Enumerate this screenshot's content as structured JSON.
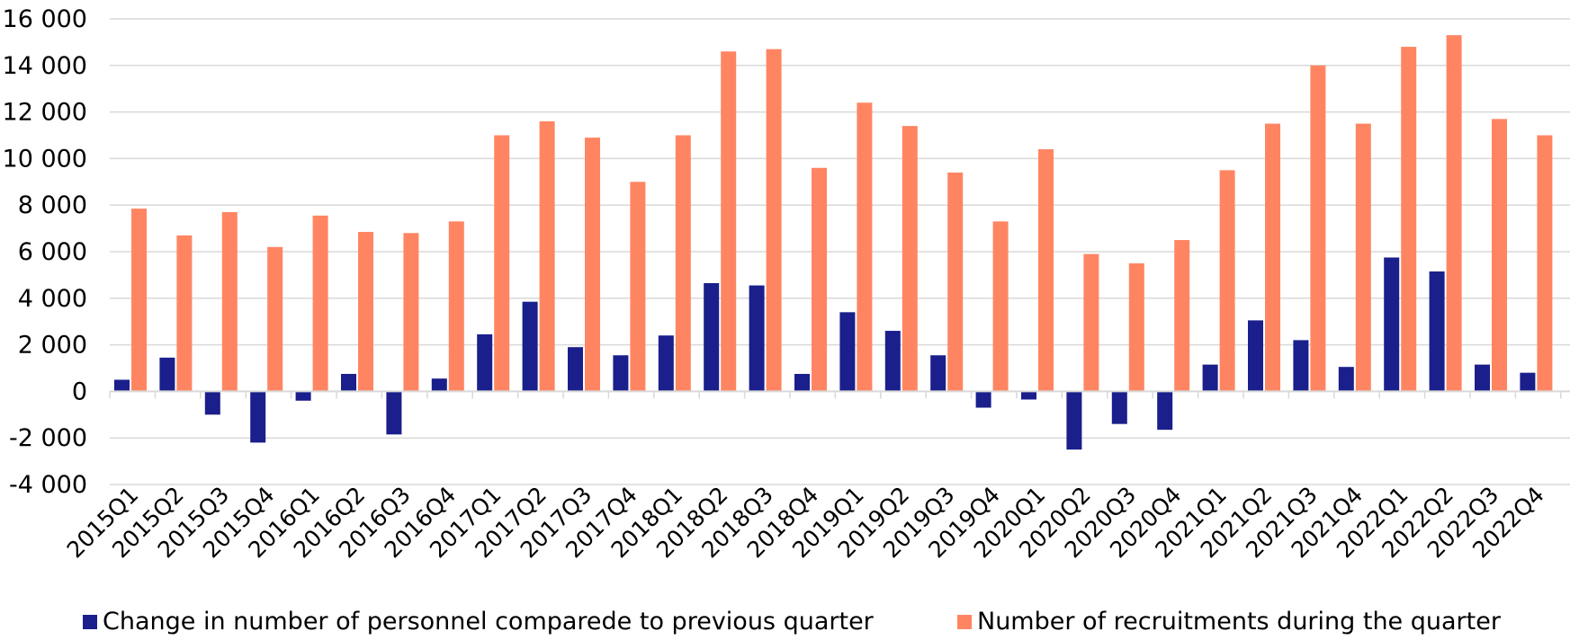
{
  "chart_data": {
    "type": "bar",
    "categories": [
      "2015Q1",
      "2015Q2",
      "2015Q3",
      "2015Q4",
      "2016Q1",
      "2016Q2",
      "2016Q3",
      "2016Q4",
      "2017Q1",
      "2017Q2",
      "2017Q3",
      "2017Q4",
      "2018Q1",
      "2018Q2",
      "2018Q3",
      "2018Q4",
      "2019Q1",
      "2019Q2",
      "2019Q3",
      "2019Q4",
      "2020Q1",
      "2020Q2",
      "2020Q3",
      "2020Q4",
      "2021Q1",
      "2021Q2",
      "2021Q3",
      "2021Q4",
      "2022Q1",
      "2022Q2",
      "2022Q3",
      "2022Q4"
    ],
    "series": [
      {
        "name": "Change in number of personnel comparede to previous quarter",
        "color": "#1a1f8c",
        "values": [
          500,
          1450,
          -1000,
          -2200,
          -400,
          750,
          -1850,
          550,
          2450,
          3850,
          1900,
          1550,
          2400,
          4650,
          4550,
          750,
          3400,
          2600,
          1550,
          -700,
          -350,
          -2500,
          -1400,
          -1650,
          1150,
          3050,
          2200,
          1050,
          5750,
          5150,
          1150,
          800
        ]
      },
      {
        "name": "Number of recruitments during the quarter",
        "color": "#ff8562",
        "values": [
          7850,
          6700,
          7700,
          6200,
          7550,
          6850,
          6800,
          7300,
          11000,
          11600,
          10900,
          9000,
          11000,
          14600,
          14700,
          9600,
          12400,
          11400,
          9400,
          7300,
          10400,
          5900,
          5500,
          6500,
          9500,
          11500,
          14000,
          11500,
          14800,
          15300,
          11700,
          11000
        ]
      }
    ],
    "yticks": [
      "16 000",
      "14 000",
      "12 000",
      "10 000",
      "8 000",
      "6 000",
      "4 000",
      "2 000",
      "0",
      "-2 000",
      "-4 000"
    ],
    "ylim": [
      -4000,
      16000
    ],
    "grid": true,
    "legend_position": "bottom"
  },
  "legend": {
    "series1": "Change in number of personnel comparede to previous quarter",
    "series2": "Number of recruitments during the quarter"
  }
}
